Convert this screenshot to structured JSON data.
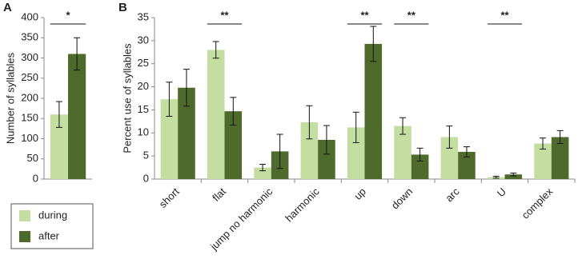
{
  "chart_data": [
    {
      "type": "bar",
      "panel_label": "A",
      "y_label": "Number of syllables",
      "categories": [
        null
      ],
      "series": [
        {
          "name": "during",
          "color": "#c4dea2",
          "values": [
            160
          ],
          "errors": [
            32
          ]
        },
        {
          "name": "after",
          "color": "#4e6b2b",
          "values": [
            310
          ],
          "errors": [
            40
          ]
        }
      ],
      "ylim": [
        0,
        400
      ],
      "yticks": [
        0,
        50,
        100,
        150,
        200,
        250,
        300,
        350,
        400
      ],
      "annotations": [
        {
          "text": "*"
        }
      ]
    },
    {
      "type": "bar",
      "panel_label": "B",
      "y_label": "Percent use of syllables",
      "categories": [
        "short",
        "flat",
        "jump no harmonic",
        "harmonic",
        "up",
        "down",
        "arc",
        "U",
        "complex"
      ],
      "series": [
        {
          "name": "during",
          "color": "#c4dea2",
          "values": [
            17.3,
            28,
            2.5,
            12.3,
            11.2,
            11.5,
            9.1,
            0.4,
            7.7
          ],
          "errors": [
            3.7,
            1.8,
            0.7,
            3.6,
            3.3,
            1.8,
            2.4,
            0.2,
            1.2
          ]
        },
        {
          "name": "after",
          "color": "#4e6b2b",
          "values": [
            19.8,
            14.7,
            6,
            8.5,
            29.3,
            5.3,
            5.9,
            1,
            9.1
          ],
          "errors": [
            4,
            3,
            3.7,
            3.1,
            3.8,
            1.4,
            1.1,
            0.3,
            1.4
          ]
        }
      ],
      "ylim": [
        0,
        35
      ],
      "yticks": [
        0,
        5,
        10,
        15,
        20,
        25,
        30,
        35
      ],
      "annotations": [
        {
          "category": "flat",
          "text": "**"
        },
        {
          "category": "up",
          "text": "**"
        },
        {
          "category": "down",
          "text": "**"
        },
        {
          "category": "U",
          "text": "**"
        }
      ]
    }
  ]
}
